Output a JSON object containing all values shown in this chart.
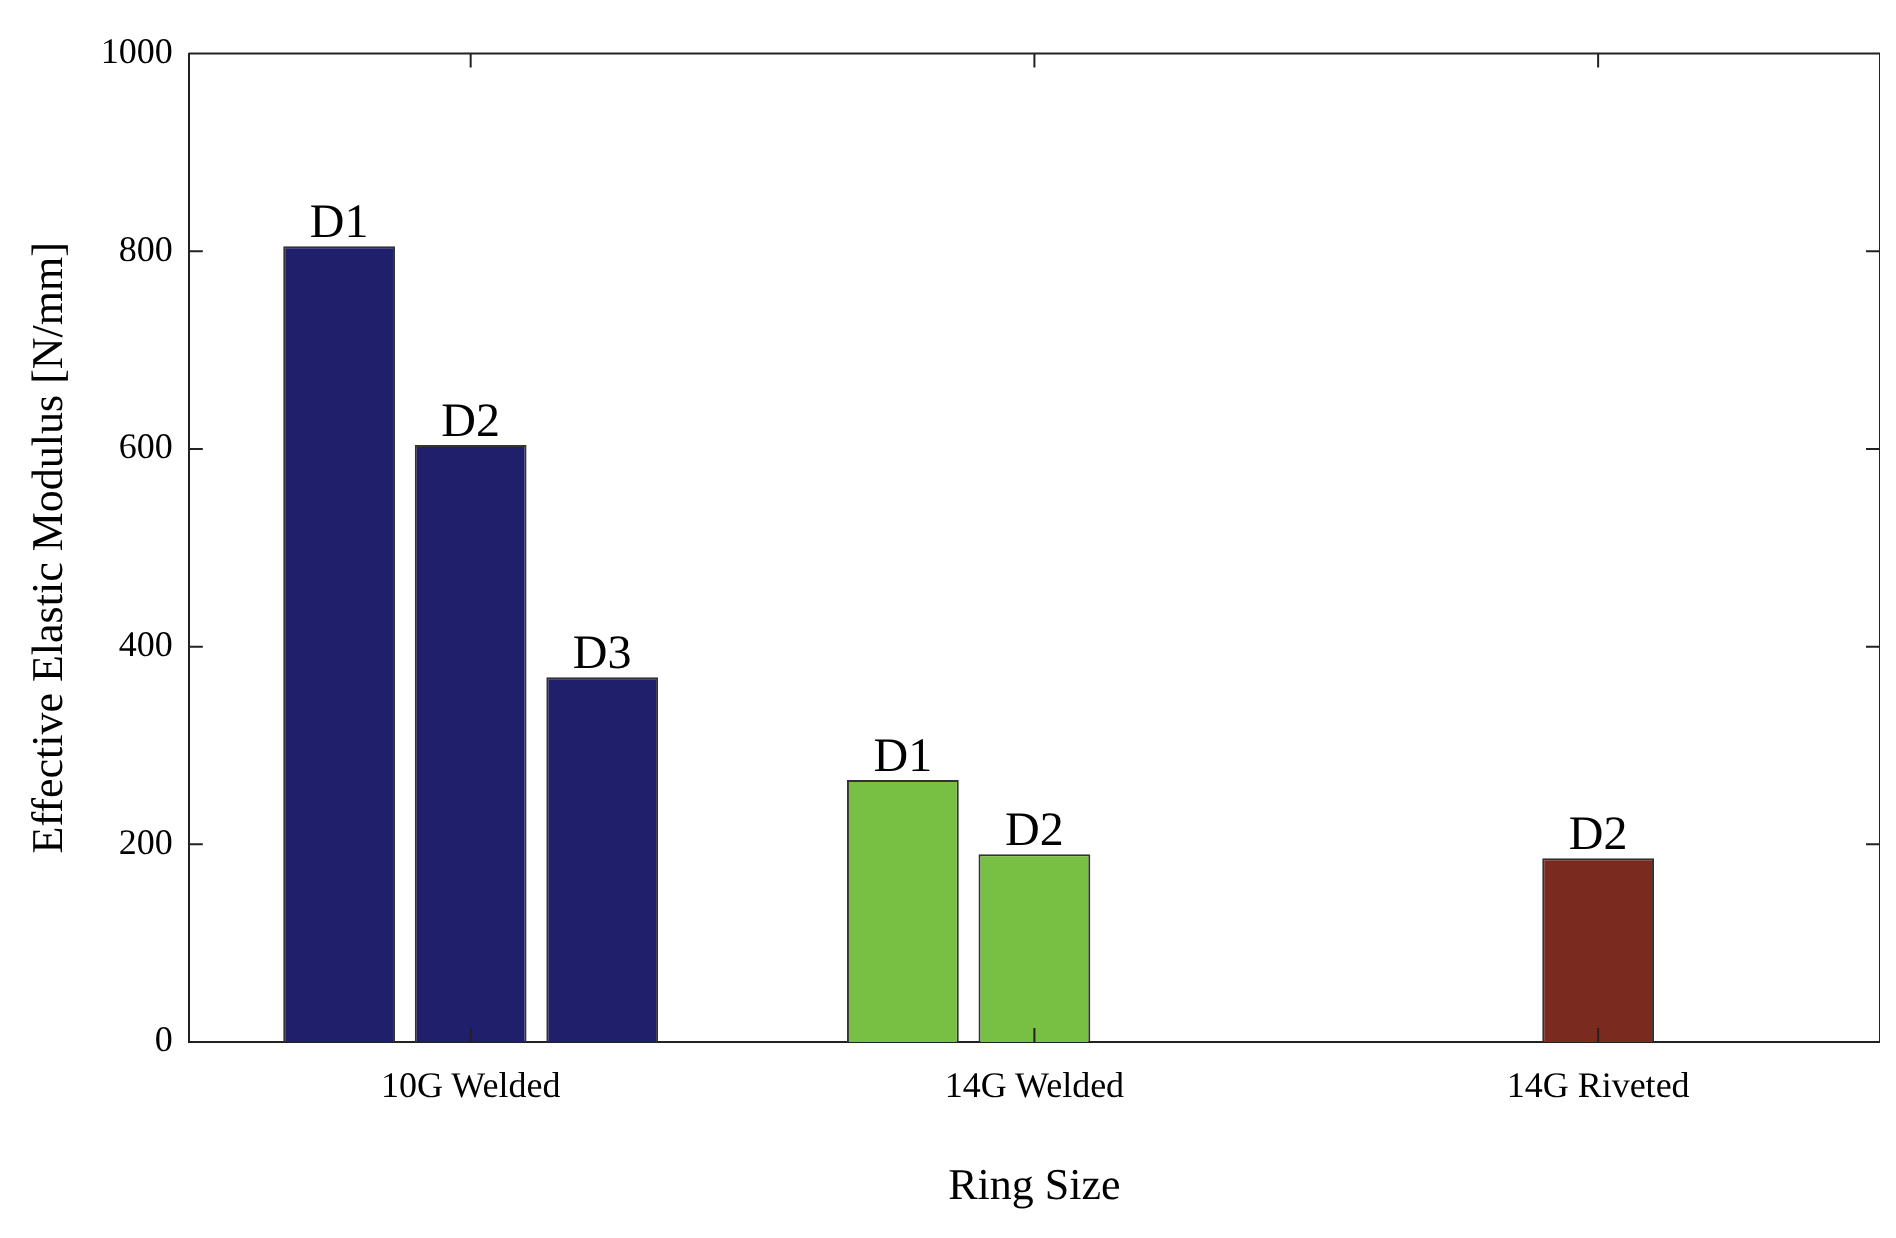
{
  "chart_data": {
    "type": "bar",
    "xlabel": "Ring Size",
    "ylabel": "Effective Elastic Modulus [N/mm]",
    "categories": [
      "10G Welded",
      "14G Welded",
      "14G Riveted"
    ],
    "series": [
      {
        "name": "D1",
        "colors": [
          "#1f1f6b",
          "#77c043",
          "#7a2a1e"
        ],
        "values": [
          805,
          265,
          null
        ]
      },
      {
        "name": "D2",
        "colors": [
          "#1f1f6b",
          "#77c043",
          "#7a2a1e"
        ],
        "values": [
          604,
          190,
          186
        ]
      },
      {
        "name": "D3",
        "colors": [
          "#1f1f6b",
          "#77c043",
          "#7a2a1e"
        ],
        "values": [
          369,
          null,
          null
        ]
      }
    ],
    "ylim": [
      0,
      1000
    ],
    "yticks": [
      0,
      200,
      400,
      600,
      800,
      1000
    ],
    "grid": false,
    "legend": false
  }
}
